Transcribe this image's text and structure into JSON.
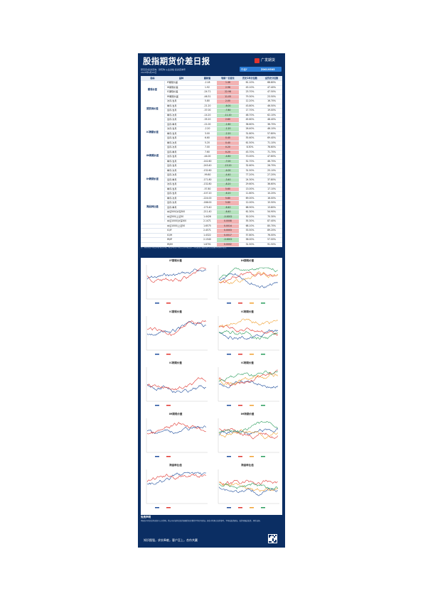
{
  "header": {
    "title": "股指期货价差日报",
    "logo_text": "广发期货",
    "source_line": "研究员/投资咨询：张晓珣 从业资格 投资咨询号",
    "date": "2025年6月26日",
    "badge_label": "作者F",
    "badge_code": "Z0019505"
  },
  "table": {
    "columns": [
      "指标",
      "品种",
      "最新值",
      "较前一日变化",
      "历史1年分位数",
      "全历史分位数"
    ],
    "groups": [
      {
        "label": "期现价差",
        "rows": 4
      },
      {
        "label": "期货间价差",
        "rows": 6
      },
      {
        "label": "IC跨期价差",
        "rows": 6
      },
      {
        "label": "IM跨期价差",
        "rows": 6
      },
      {
        "label": "IH跨期价差",
        "rows": 6
      },
      {
        "label": "跨品种比值",
        "rows": 8
      }
    ],
    "rows": [
      [
        "IF期现价差",
        "-2.18",
        "1.46",
        "61.10%",
        "68.80%"
      ],
      [
        "IH期现价差",
        "1.92",
        "2.98",
        "43.10%",
        "47.40%"
      ],
      [
        "IC期现价差",
        "-24.71",
        "22.98",
        "23.70%",
        "47.50%"
      ],
      [
        "IM期现价差",
        "-46.31",
        "11.05",
        "79.30%",
        "23.50%"
      ],
      [
        "次月-当月",
        "5.80",
        "2.00",
        "12.20%",
        "16.70%"
      ],
      [
        "季月-当月",
        "-21.20",
        "-6.00",
        "43.80%",
        "46.50%"
      ],
      [
        "远月-当月",
        "-37.00",
        "-7.80",
        "17.70%",
        "19.00%"
      ],
      [
        "季月-次月",
        "-14.20",
        "-11.20",
        "48.70%",
        "62.10%"
      ],
      [
        "远月-次月",
        "-35.20",
        "2.60",
        "45.60%",
        "48.40%"
      ],
      [
        "远月-季月",
        "-21.00",
        "-1.60",
        "36.60%",
        "36.70%"
      ],
      [
        "次月-当月",
        "-2.20",
        "-1.20",
        "26.40%",
        "46.10%"
      ],
      [
        "季月-当月",
        "3.00",
        "-2.20",
        "31.80%",
        "57.80%"
      ],
      [
        "远月-当月",
        "6.60",
        "0.40",
        "55.60%",
        "69.40%"
      ],
      [
        "季月-次月",
        "5.20",
        "0.40",
        "61.50%",
        "71.10%"
      ],
      [
        "远月-次月",
        "7.00",
        "0.20",
        "8.30%",
        "76.60%"
      ],
      [
        "远月-季月",
        "7.60",
        "0.20",
        "43.70%",
        "71.70%"
      ],
      [
        "次月-当月",
        "-44.00",
        "-4.80",
        "70.00%",
        "47.60%"
      ],
      [
        "季月-当月",
        "-142.60",
        "-7.00",
        "52.70%",
        "46.70%"
      ],
      [
        "远月-当月",
        "-243.40",
        "-15.20",
        "32.60%",
        "26.70%"
      ],
      [
        "季月-次月",
        "-132.60",
        "-4.00",
        "31.50%",
        "25.10%"
      ],
      [
        "远月-次月",
        "-99.80",
        "-4.40",
        "77.20%",
        "27.20%"
      ],
      [
        "远月-季月",
        "-171.80",
        "-3.40",
        "24.30%",
        "37.80%"
      ],
      [
        "次月-当月",
        "-132.80",
        "-8.20",
        "29.60%",
        "36.60%"
      ],
      [
        "季月-当月",
        "-57.80",
        "5.60",
        "13.00%",
        "17.10%"
      ],
      [
        "远月-当月",
        "-107.20",
        "-6.20",
        "11.80%",
        "10.20%"
      ],
      [
        "季月-次月",
        "-224.00",
        "5.80",
        "69.00%",
        "16.00%"
      ],
      [
        "远月-次月",
        "-166.00",
        "5.80",
        "12.00%",
        "15.50%"
      ],
      [
        "远月-季月",
        "-175.40",
        "-6.40",
        "68.90%",
        "13.80%"
      ],
      [
        "中证500/沪深300",
        "-211.40",
        "-6.40",
        "61.30%",
        "54.90%"
      ],
      [
        "中证500/上证50",
        "1.4426",
        "-0.0002",
        "30.20%",
        "70.30%"
      ],
      [
        "中证1000/沪深300",
        "2.1471",
        "0.0008",
        "55.30%",
        "87.40%"
      ],
      [
        "中证1000/上证50",
        "1.6575",
        "0.0014",
        "68.10%",
        "80.70%"
      ],
      [
        "IC/IF",
        "2.4571",
        "0.0003",
        "53.50%",
        "89.20%"
      ],
      [
        "IC/IH",
        "1.4322",
        "0.0017",
        "57.80%",
        "76.00%"
      ],
      [
        "IM/IF",
        "2.1540",
        "-0.0002",
        "58.00%",
        "57.00%"
      ],
      [
        "IM/IH",
        "1.8701",
        "0.0002",
        "31.50%",
        "91.50%"
      ]
    ],
    "row_signs": [
      "up",
      "up",
      "up",
      "up",
      "up",
      "dn",
      "dn",
      "dn",
      "up",
      "dn",
      "dn",
      "dn",
      "up",
      "up",
      "up",
      "up",
      "dn",
      "dn",
      "dn",
      "dn",
      "dn",
      "dn",
      "dn",
      "up",
      "dn",
      "up",
      "up",
      "dn",
      "dn",
      "dn",
      "up",
      "up",
      "up",
      "up",
      "dn",
      "up"
    ]
  },
  "note": "注：期现价差=期货价格-现货价格；期货间价差=期货合约价格之差；分位数表示最新值在历史数据中的排序位置。",
  "charts": {
    "panels": [
      {
        "title": "IF期现价差"
      },
      {
        "title": "IH期现价差"
      },
      {
        "title": "IC期现价差"
      },
      {
        "title": "IC跨期价差"
      },
      {
        "title": "IC跨期价差"
      },
      {
        "title": "IC跨期价差"
      },
      {
        "title": "IM期现价差"
      },
      {
        "title": "IM跨期价差"
      },
      {
        "title": "跨品种比值"
      },
      {
        "title": "跨品种比值"
      }
    ],
    "series_colors": [
      "#1f4e9c",
      "#e0342e",
      "#f0a030",
      "#2a9d5c",
      "#7fb0e0"
    ]
  },
  "disclaimer": {
    "title": "免责声明",
    "text": "本报告中的信息均来源于公开资料，我公司对这些信息的准确性和完整性不作任何保证。报告中的观点仅供参考，不构成投资建议，投资者据此投资，风险自担。"
  },
  "footer": {
    "slogan": "知识图强，求实奉献，客户至上，合作共赢"
  }
}
